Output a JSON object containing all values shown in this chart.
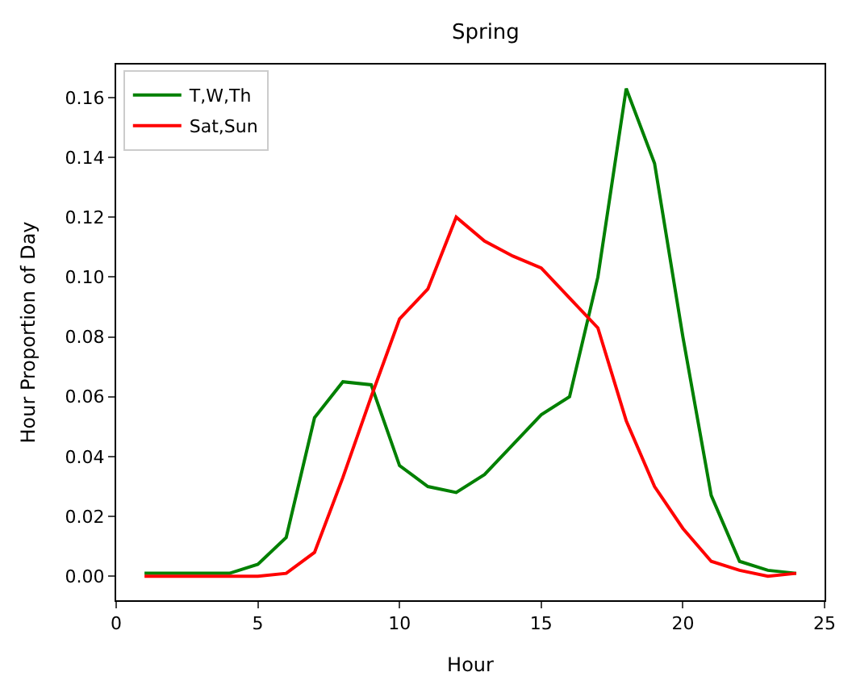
{
  "chart_data": {
    "type": "line",
    "title": "Spring",
    "xlabel": "Hour",
    "ylabel": "Hour Proportion of Day",
    "x": [
      1,
      2,
      3,
      4,
      5,
      6,
      7,
      8,
      9,
      10,
      11,
      12,
      13,
      14,
      15,
      16,
      17,
      18,
      19,
      20,
      21,
      22,
      23,
      24
    ],
    "series": [
      {
        "name": "T,W,Th",
        "color": "#008000",
        "values": [
          0.001,
          0.001,
          0.001,
          0.001,
          0.004,
          0.013,
          0.053,
          0.065,
          0.064,
          0.037,
          0.03,
          0.028,
          0.034,
          0.044,
          0.054,
          0.06,
          0.1,
          0.163,
          0.138,
          0.08,
          0.027,
          0.005,
          0.002,
          0.001
        ]
      },
      {
        "name": "Sat,Sun",
        "color": "#ff0000",
        "values": [
          0.0,
          0.0,
          0.0,
          0.0,
          0.0,
          0.001,
          0.008,
          0.033,
          0.06,
          0.086,
          0.096,
          0.12,
          0.112,
          0.107,
          0.103,
          0.093,
          0.083,
          0.052,
          0.03,
          0.016,
          0.005,
          0.002,
          0.0,
          0.001
        ]
      }
    ],
    "xlim": [
      0,
      25
    ],
    "xticks": [
      0,
      5,
      10,
      15,
      20,
      25
    ],
    "ylim": [
      -0.008,
      0.171
    ],
    "yticks": [
      {
        "value": 0,
        "label": "0.00"
      },
      {
        "value": 0.02,
        "label": "0.02"
      },
      {
        "value": 0.04,
        "label": "0.04"
      },
      {
        "value": 0.06,
        "label": "0.06"
      },
      {
        "value": 0.08,
        "label": "0.08"
      },
      {
        "value": 0.1,
        "label": "0.10"
      },
      {
        "value": 0.12,
        "label": "0.12"
      },
      {
        "value": 0.14,
        "label": "0.14"
      },
      {
        "value": 0.16,
        "label": "0.16"
      }
    ],
    "legend": "top left",
    "marker": "none",
    "line_style": "solid"
  }
}
